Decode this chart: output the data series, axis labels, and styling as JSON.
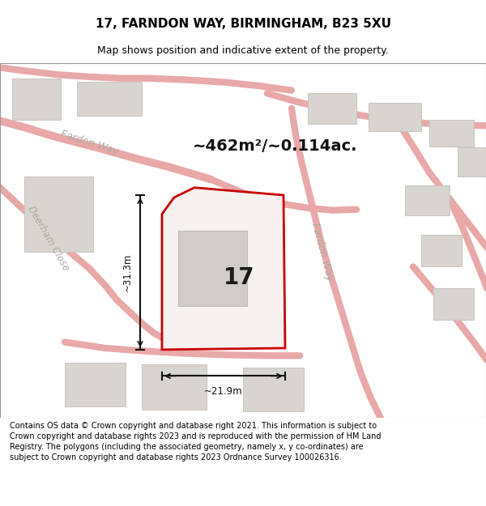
{
  "title": "17, FARNDON WAY, BIRMINGHAM, B23 5XU",
  "subtitle": "Map shows position and indicative extent of the property.",
  "area_text": "~462m²/~0.114ac.",
  "label_17": "17",
  "dim_width": "~21.9m",
  "dim_height": "~31.3m",
  "footer": "Contains OS data © Crown copyright and database right 2021. This information is subject to Crown copyright and database rights 2023 and is reproduced with the permission of HM Land Registry. The polygons (including the associated geometry, namely x, y co-ordinates) are subject to Crown copyright and database rights 2023 Ordnance Survey 100026316.",
  "map_bg": "#eeebe6",
  "road_color": "#e8a8a8",
  "building_fill": "#d8d4cf",
  "building_edge": "#c8c4bf",
  "property_fill": "#f5f2ef",
  "property_edge": "#cc0000",
  "title_fontsize": 11,
  "subtitle_fontsize": 9,
  "footer_fontsize": 7.0,
  "street_label_color": "#b0a8a0"
}
